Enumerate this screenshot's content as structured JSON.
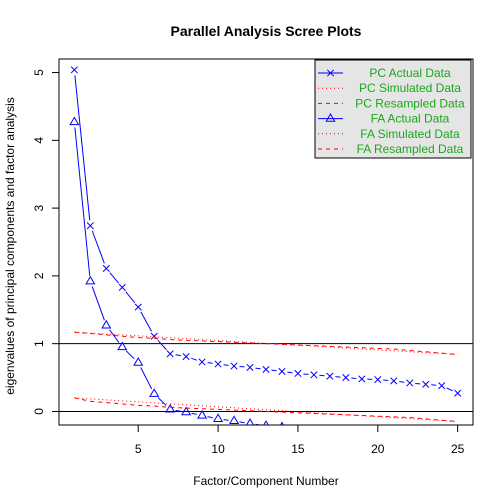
{
  "chart_data": {
    "type": "line",
    "title": "Parallel Analysis Scree Plots",
    "xlabel": "Factor/Component Number",
    "ylabel": "eigenvalues of principal components and factor analysis",
    "xlim": [
      0.04,
      25.96
    ],
    "ylim": [
      -0.2,
      5.2
    ],
    "x_ticks": [
      5,
      10,
      15,
      20,
      25
    ],
    "y_ticks": [
      0,
      1,
      2,
      3,
      4,
      5
    ],
    "reference_lines": [
      0,
      1
    ],
    "legend_position": "top-right",
    "colors": {
      "pc_actual": "#0000ff",
      "fa_actual": "#0000ff",
      "simulated": "#ff0000",
      "resampled": "#ff0000",
      "legend_text": "#1aa81a",
      "legend_bg": "#e5e5e5"
    },
    "series": [
      {
        "name": "PC  Actual Data",
        "marker": "x",
        "line_style": "solid",
        "x": [
          1,
          2,
          3,
          4,
          5,
          6,
          7,
          8,
          9,
          10,
          11,
          12,
          13,
          14,
          15,
          16,
          17,
          18,
          19,
          20,
          21,
          22,
          23,
          24,
          25
        ],
        "y": [
          5.04,
          2.74,
          2.11,
          1.83,
          1.54,
          1.11,
          0.85,
          0.81,
          0.73,
          0.7,
          0.67,
          0.65,
          0.62,
          0.59,
          0.56,
          0.54,
          0.52,
          0.5,
          0.48,
          0.47,
          0.45,
          0.42,
          0.4,
          0.38,
          0.27
        ]
      },
      {
        "name": "PC  Simulated Data",
        "marker": "none",
        "line_style": "dotted",
        "x": [
          1,
          25
        ],
        "y": [
          1.17,
          0.84
        ]
      },
      {
        "name": "PC  Resampled Data",
        "marker": "none",
        "line_style": "dashed",
        "x": [
          1,
          2,
          3,
          4,
          5,
          6,
          7,
          8,
          9,
          10,
          11,
          12,
          13,
          14,
          15,
          16,
          17,
          18,
          19,
          20,
          21,
          22,
          23,
          24,
          25
        ],
        "y": [
          1.17,
          1.15,
          1.13,
          1.11,
          1.09,
          1.08,
          1.06,
          1.05,
          1.04,
          1.03,
          1.02,
          1.01,
          1.0,
          0.99,
          0.98,
          0.97,
          0.96,
          0.95,
          0.94,
          0.93,
          0.92,
          0.9,
          0.88,
          0.86,
          0.84
        ]
      },
      {
        "name": "FA  Actual Data",
        "marker": "triangle",
        "line_style": "solid",
        "x": [
          1,
          2,
          3,
          4,
          5,
          6,
          7,
          8,
          9,
          10,
          11,
          12,
          13,
          14
        ],
        "y": [
          4.27,
          1.92,
          1.27,
          0.95,
          0.72,
          0.26,
          0.03,
          -0.01,
          -0.06,
          -0.11,
          -0.14,
          -0.18,
          -0.21,
          -0.23
        ]
      },
      {
        "name": "FA  Simulated Data",
        "marker": "none",
        "line_style": "dotted",
        "x": [
          1,
          25
        ],
        "y": [
          0.2,
          -0.15
        ]
      },
      {
        "name": "FA  Resampled Data",
        "marker": "none",
        "line_style": "dashed",
        "x": [
          1,
          2,
          3,
          4,
          5,
          6,
          7,
          8,
          9,
          10,
          11,
          12,
          13,
          14,
          15,
          16,
          17,
          18,
          19,
          20,
          21,
          22,
          23,
          24,
          25
        ],
        "y": [
          0.2,
          0.15,
          0.13,
          0.11,
          0.09,
          0.08,
          0.06,
          0.05,
          0.04,
          0.03,
          0.02,
          0.01,
          0.0,
          -0.01,
          -0.02,
          -0.03,
          -0.04,
          -0.05,
          -0.06,
          -0.07,
          -0.08,
          -0.09,
          -0.11,
          -0.13,
          -0.15
        ]
      }
    ]
  }
}
